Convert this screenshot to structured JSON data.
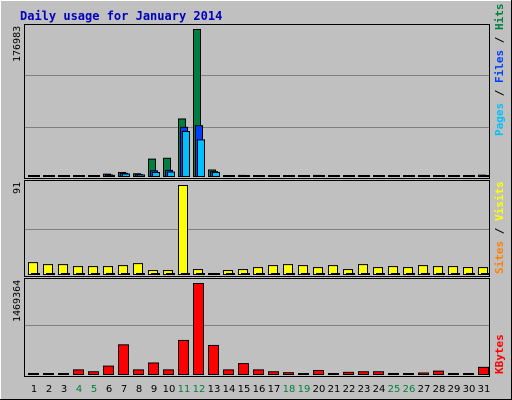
{
  "title": "Daily usage for January 2014",
  "colors": {
    "background": "#C0C0C0",
    "plot": "#C0C0C0",
    "title": "#0000C0",
    "hits": "#008040",
    "files": "#0040FF",
    "pages": "#00C0FF",
    "visits": "#FFFF00",
    "sites": "#FF8000",
    "kbytes": "#FF0000",
    "weekend_label": "#008040",
    "weekday_label": "#000000",
    "grid": "#808080"
  },
  "legend": {
    "top": {
      "pages": "Pages",
      "files": "Files",
      "hits": "Hits",
      "sep": " / "
    },
    "middle": {
      "sites": "Sites",
      "visits": "Visits",
      "sep": " / "
    },
    "bottom": {
      "kbytes": "KBytes"
    }
  },
  "chart_data": [
    {
      "type": "bar",
      "panel": "hits-files-pages",
      "y_axis_max_label": "176983",
      "ylim": [
        0,
        176983
      ],
      "categories": [
        "1",
        "2",
        "3",
        "4",
        "5",
        "6",
        "7",
        "8",
        "9",
        "10",
        "11",
        "12",
        "13",
        "14",
        "15",
        "16",
        "17",
        "18",
        "19",
        "20",
        "21",
        "22",
        "23",
        "24",
        "25",
        "26",
        "27",
        "28",
        "29",
        "30",
        "31"
      ],
      "weekend_days": [
        "4",
        "5",
        "11",
        "12",
        "18",
        "19",
        "25",
        "26"
      ],
      "series": [
        {
          "name": "Hits",
          "values": [
            1200,
            1100,
            1000,
            900,
            1100,
            4000,
            6000,
            4500,
            22000,
            23000,
            70000,
            176983,
            9000,
            2200,
            2500,
            1800,
            1600,
            1300,
            1200,
            2500,
            2400,
            1900,
            2000,
            1800,
            1400,
            1400,
            1700,
            1900,
            1600,
            1500,
            2800
          ]
        },
        {
          "name": "Files",
          "values": [
            900,
            800,
            700,
            650,
            800,
            3000,
            5000,
            3500,
            8000,
            8500,
            60000,
            62000,
            7000,
            1500,
            1800,
            1300,
            1200,
            900,
            850,
            1800,
            1700,
            1400,
            1500,
            1300,
            1000,
            1000,
            1200,
            1400,
            1200,
            1100,
            2000
          ]
        },
        {
          "name": "Pages",
          "values": [
            800,
            700,
            600,
            550,
            700,
            2500,
            4200,
            3000,
            6000,
            6500,
            55000,
            45000,
            6000,
            1200,
            1500,
            1100,
            1000,
            800,
            750,
            1600,
            1500,
            1200,
            1300,
            1100,
            900,
            900,
            1000,
            1200,
            1000,
            950,
            1700
          ]
        }
      ]
    },
    {
      "type": "bar",
      "panel": "visits-sites",
      "y_axis_max_label": "91",
      "ylim": [
        0,
        91
      ],
      "categories": [
        "1",
        "2",
        "3",
        "4",
        "5",
        "6",
        "7",
        "8",
        "9",
        "10",
        "11",
        "12",
        "13",
        "14",
        "15",
        "16",
        "17",
        "18",
        "19",
        "20",
        "21",
        "22",
        "23",
        "24",
        "25",
        "26",
        "27",
        "28",
        "29",
        "30",
        "31"
      ],
      "series": [
        {
          "name": "Visits",
          "values": [
            13,
            11,
            11,
            9,
            9,
            9,
            10,
            12,
            5,
            5,
            91,
            6,
            1,
            5,
            6,
            8,
            10,
            11,
            10,
            8,
            10,
            6,
            11,
            8,
            9,
            8,
            10,
            9,
            9,
            8,
            8
          ]
        },
        {
          "name": "Sites",
          "values": [
            2,
            2,
            2,
            2,
            2,
            2,
            2,
            2,
            2,
            2,
            2,
            2,
            1,
            2,
            2,
            2,
            2,
            2,
            2,
            2,
            2,
            2,
            2,
            2,
            2,
            2,
            2,
            2,
            2,
            2,
            2
          ]
        }
      ]
    },
    {
      "type": "bar",
      "panel": "kbytes",
      "y_axis_max_label": "1469364",
      "ylim": [
        0,
        1469364
      ],
      "categories": [
        "1",
        "2",
        "3",
        "4",
        "5",
        "6",
        "7",
        "8",
        "9",
        "10",
        "11",
        "12",
        "13",
        "14",
        "15",
        "16",
        "17",
        "18",
        "19",
        "20",
        "21",
        "22",
        "23",
        "24",
        "25",
        "26",
        "27",
        "28",
        "29",
        "30",
        "31"
      ],
      "series": [
        {
          "name": "KBytes",
          "values": [
            10000,
            10000,
            15000,
            90000,
            60000,
            150000,
            490000,
            90000,
            200000,
            90000,
            560000,
            1469364,
            480000,
            90000,
            190000,
            90000,
            60000,
            45000,
            15000,
            80000,
            20000,
            50000,
            60000,
            60000,
            15000,
            20000,
            40000,
            70000,
            15000,
            20000,
            130000
          ]
        }
      ]
    }
  ]
}
